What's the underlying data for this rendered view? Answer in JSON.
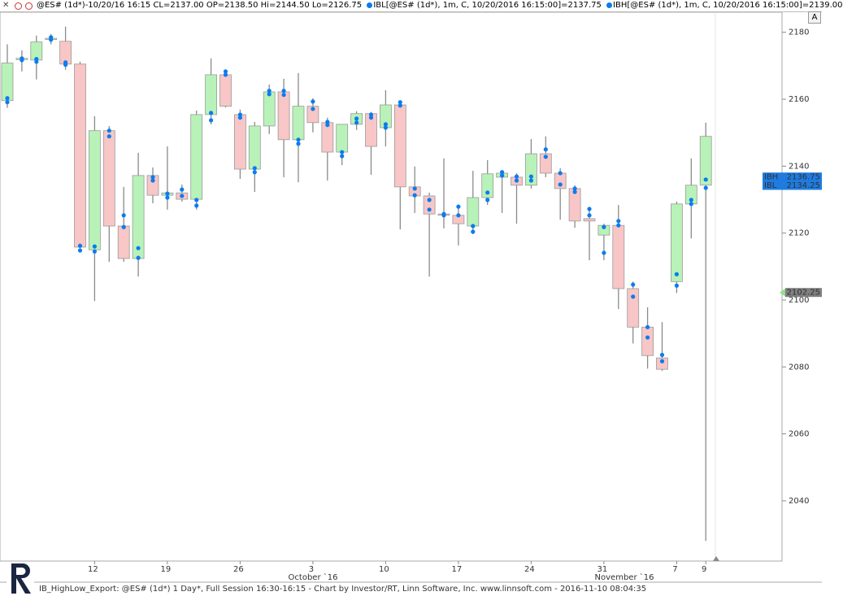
{
  "chart_data": {
    "type": "candlestick",
    "header": {
      "symbol": "@ES# (1d*)-10/20/16 16:15 CL=2137.00 OP=2138.50 Hi=2144.50 Lo=2126.75",
      "ibl": "IBL[@ES# (1d*), 1m, C, 10/20/2016 16:15:00]=2137.75",
      "ibh": "IBH[@ES# (1d*), 1m, C, 10/20/2016 16:15:00]=2139.00",
      "button": "A"
    },
    "footer": "IB_HighLow_Export: @ES# (1d*) 1 Day*, Full Session 16:30-16:15 - Chart by Investor/RT, Linn Software, Inc. www.linnsoft.com - 2016-11-10 08:04:35",
    "categories": [
      null,
      null,
      null,
      null,
      null,
      null,
      "12",
      null,
      null,
      null,
      null,
      "19",
      null,
      null,
      null,
      null,
      "26",
      null,
      null,
      null,
      null,
      "3",
      null,
      null,
      null,
      null,
      "10",
      null,
      null,
      null,
      null,
      "17",
      null,
      null,
      null,
      null,
      "24",
      null,
      null,
      null,
      null,
      "31",
      null,
      null,
      null,
      null,
      "7",
      null,
      "9"
    ],
    "period_labels": [
      "October `16",
      "November `16"
    ],
    "open": [
      2159.6,
      2172,
      2171.7,
      2178,
      2177.3,
      2170.5,
      2115,
      2150.6,
      2122.1,
      2112.4,
      2137.2,
      2131.3,
      2132,
      2130.1,
      2155.4,
      2167.3,
      2155.4,
      2139.1,
      2152,
      2162.2,
      2147.9,
      2157.9,
      2153,
      2144.2,
      2152.5,
      2155.7,
      2151.5,
      2158.3,
      2133.8,
      2131.1,
      2125.7,
      2125.3,
      2122.1,
      2130.6,
      2136.7,
      2136.7,
      2134.3,
      2143.7,
      2137.9,
      2133.3,
      2124.3,
      2119.4,
      2122.3,
      2103.4,
      2091.9,
      2082.7,
      2105.5,
      2128.7,
      2134.3
    ],
    "high": [
      2176.4,
      2174.6,
      2179,
      2179.5,
      2181.7,
      2171.2,
      2154.9,
      2152,
      2133.8,
      2144,
      2139.6,
      2145.9,
      2134.5,
      2156.6,
      2172.2,
      2168.8,
      2156.9,
      2153.2,
      2164.4,
      2166.1,
      2167.8,
      2160.3,
      2154.5,
      2152.5,
      2156.4,
      2156.2,
      2162.7,
      2159.1,
      2139.9,
      2132.1,
      2142.3,
      2127.7,
      2138.6,
      2141.8,
      2138.6,
      2137.9,
      2148.1,
      2148.9,
      2139.4,
      2134.3,
      2127.7,
      2122.8,
      2128.4,
      2105.5,
      2097.8,
      2093.4,
      2129.4,
      2142.3,
      2153
    ],
    "low": [
      2157.4,
      2168.3,
      2165.9,
      2176.4,
      2168.8,
      2115,
      2099.7,
      2111.4,
      2111.4,
      2107,
      2128.9,
      2127,
      2129.4,
      2127,
      2152.5,
      2157.5,
      2136.2,
      2132.3,
      2149.6,
      2136.7,
      2135.2,
      2150.1,
      2135.7,
      2140.3,
      2150.8,
      2137.4,
      2145.9,
      2121.1,
      2126,
      2107,
      2121.4,
      2116.3,
      2119.7,
      2128.4,
      2126,
      2122.8,
      2133.3,
      2136.7,
      2124,
      2121.6,
      2111.9,
      2111.9,
      2097.3,
      2087,
      2079.5,
      2078.8,
      2102.1,
      2118.4,
      2028
    ],
    "close": [
      2170.8,
      2172.2,
      2177.1,
      2178.2,
      2170.5,
      2115.8,
      2150.6,
      2122.1,
      2112.4,
      2137.2,
      2131.3,
      2132,
      2130.1,
      2155.4,
      2167.3,
      2157.9,
      2139.1,
      2152,
      2162.2,
      2147.9,
      2157.9,
      2153,
      2144.2,
      2152.5,
      2155.7,
      2145.9,
      2158.3,
      2133.8,
      2131.1,
      2125.7,
      2125.5,
      2122.8,
      2130.6,
      2137.7,
      2137.9,
      2134.3,
      2143.7,
      2137.9,
      2133.3,
      2123.6,
      2123.6,
      2122.3,
      2103.4,
      2091.9,
      2083.4,
      2079.3,
      2128.7,
      2134.3,
      2148.9
    ],
    "ibh": [
      2160.3,
      2172.2,
      2172,
      2178.5,
      2171,
      2116.2,
      2116,
      2150.6,
      2125.3,
      2115.5,
      2136.7,
      2131.8,
      2133,
      2129.9,
      2155.9,
      2168.3,
      2155.4,
      2139.4,
      2162.5,
      2162.5,
      2147.9,
      2159.3,
      2153.2,
      2144.2,
      2154.2,
      2155.4,
      2152.5,
      2159.1,
      2133.3,
      2129.9,
      2125.7,
      2127.9,
      2122.1,
      2132.1,
      2138.2,
      2136.9,
      2136.9,
      2145,
      2137.9,
      2133.3,
      2127.2,
      2121.8,
      2123.6,
      2104.6,
      2091.9,
      2083.6,
      2107.7,
      2129.9,
      2136
    ],
    "ibl": [
      2159.1,
      2171.7,
      2171.2,
      2177.8,
      2170.3,
      2114.8,
      2114.5,
      2148.9,
      2121.8,
      2112.6,
      2135.7,
      2130.6,
      2131.1,
      2128.2,
      2153.7,
      2167.3,
      2154.5,
      2138.2,
      2161.5,
      2161.3,
      2146.7,
      2157.1,
      2152.3,
      2143,
      2153,
      2154.5,
      2151.5,
      2158.1,
      2131.3,
      2127,
      2125.3,
      2125.3,
      2120.4,
      2129.9,
      2137.2,
      2135.7,
      2135.7,
      2142.8,
      2134.5,
      2132.3,
      2125.3,
      2114.1,
      2122.3,
      2101,
      2088.8,
      2081.7,
      2104.3,
      2128.7,
      2133.5
    ],
    "up_color": "#b8f2b8",
    "down_color": "#f8c6c6",
    "dot_color": "#0a7cf0",
    "price_labels": [
      {
        "label": "IBH",
        "value": 2136.75,
        "color": "#1e7be0"
      },
      {
        "label": "IBL",
        "value": 2134.25,
        "color": "#1e7be0"
      },
      {
        "value": 2102.25,
        "color": "#7f7f7f"
      }
    ],
    "ylim": [
      2022,
      2186
    ],
    "yticks": [
      2040,
      2060,
      2080,
      2100,
      2120,
      2140,
      2160,
      2180
    ]
  }
}
